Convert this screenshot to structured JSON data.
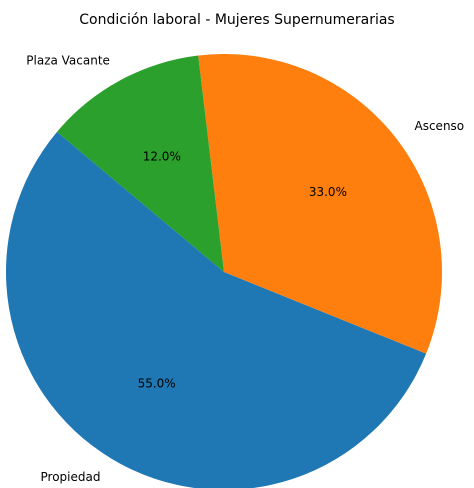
{
  "chart_data": {
    "type": "pie",
    "title": "Condición laboral - Mujeres Supernumerarias",
    "categories": [
      "Propiedad",
      "Ascenso",
      "Plaza Vacante"
    ],
    "values": [
      55,
      33,
      12
    ],
    "value_labels": [
      "55.0%",
      "33.0%",
      "12.0%"
    ],
    "colors": [
      "#1f77b4",
      "#ff7f0e",
      "#2ca02c"
    ]
  }
}
